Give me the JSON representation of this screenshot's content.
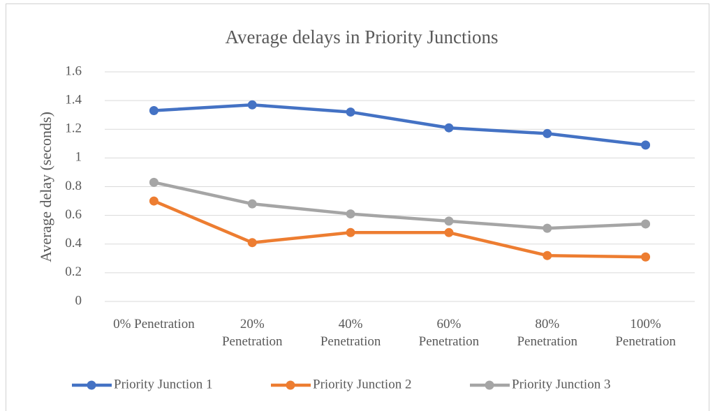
{
  "chart_data": {
    "type": "line",
    "title": "Average delays in Priority Junctions",
    "y_label": "Average delay (seconds)",
    "categories": [
      "0% Penetration",
      "20% Penetration",
      "40% Penetration",
      "60% Penetration",
      "80% Penetration",
      "100% Penetration"
    ],
    "series": [
      {
        "name": "Priority Junction 1",
        "color": "#4472c4",
        "values": [
          1.33,
          1.37,
          1.32,
          1.21,
          1.17,
          1.09
        ]
      },
      {
        "name": "Priority Junction 2",
        "color": "#ed7d31",
        "values": [
          0.7,
          0.41,
          0.48,
          0.48,
          0.32,
          0.31
        ]
      },
      {
        "name": "Priority Junction 3",
        "color": "#a5a5a5",
        "values": [
          0.83,
          0.68,
          0.61,
          0.56,
          0.51,
          0.54
        ]
      }
    ],
    "ylim": [
      0,
      1.6
    ],
    "yticks": [
      0,
      {
        "value": 0.2,
        "label": "0.2"
      },
      {
        "value": 0.4,
        "label": "0.4"
      },
      {
        "value": 0.6,
        "label": "0.6"
      },
      {
        "value": 0.8,
        "label": "0.8"
      },
      1,
      {
        "value": 1.2,
        "label": "1.2"
      },
      {
        "value": 1.4,
        "label": "1.4"
      },
      {
        "value": 1.6,
        "label": "1.6"
      }
    ],
    "grid": true,
    "legend": "bottom"
  }
}
